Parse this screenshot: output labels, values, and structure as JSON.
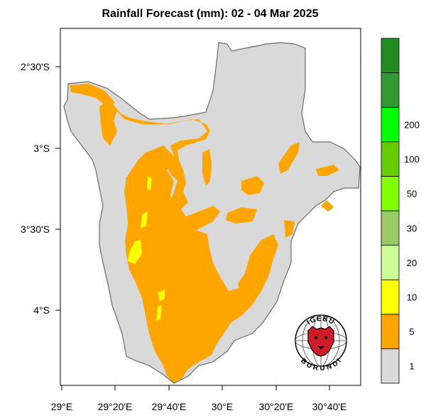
{
  "title": "Rainfall Forecast (mm): 02 - 04 Mar 2025",
  "x_ticks": [
    "29°E",
    "29°20'E",
    "29°40'E",
    "30°E",
    "30°20'E",
    "30°40'E"
  ],
  "y_ticks": [
    "2°30'S",
    "3°S",
    "3°30'S",
    "4°S"
  ],
  "colorbar": {
    "labels": [
      "1",
      "5",
      "10",
      "20",
      "30",
      "50",
      "100",
      "200"
    ],
    "colors": [
      "#d9d9d9",
      "#ffa500",
      "#ffff00",
      "#ccff99",
      "#99cc66",
      "#80ff00",
      "#66cc00",
      "#00ff00",
      "#339933",
      "#228b22"
    ]
  },
  "logo": {
    "top_text": "IGEBU",
    "bottom_text": "BURUNDI"
  },
  "colors": {
    "none": "#d9d9d9",
    "rain_1_5": "#ffa500",
    "rain_5_10": "#ffff00",
    "country_border": "#6b6b6b",
    "logo_red": "#d11a2a"
  }
}
